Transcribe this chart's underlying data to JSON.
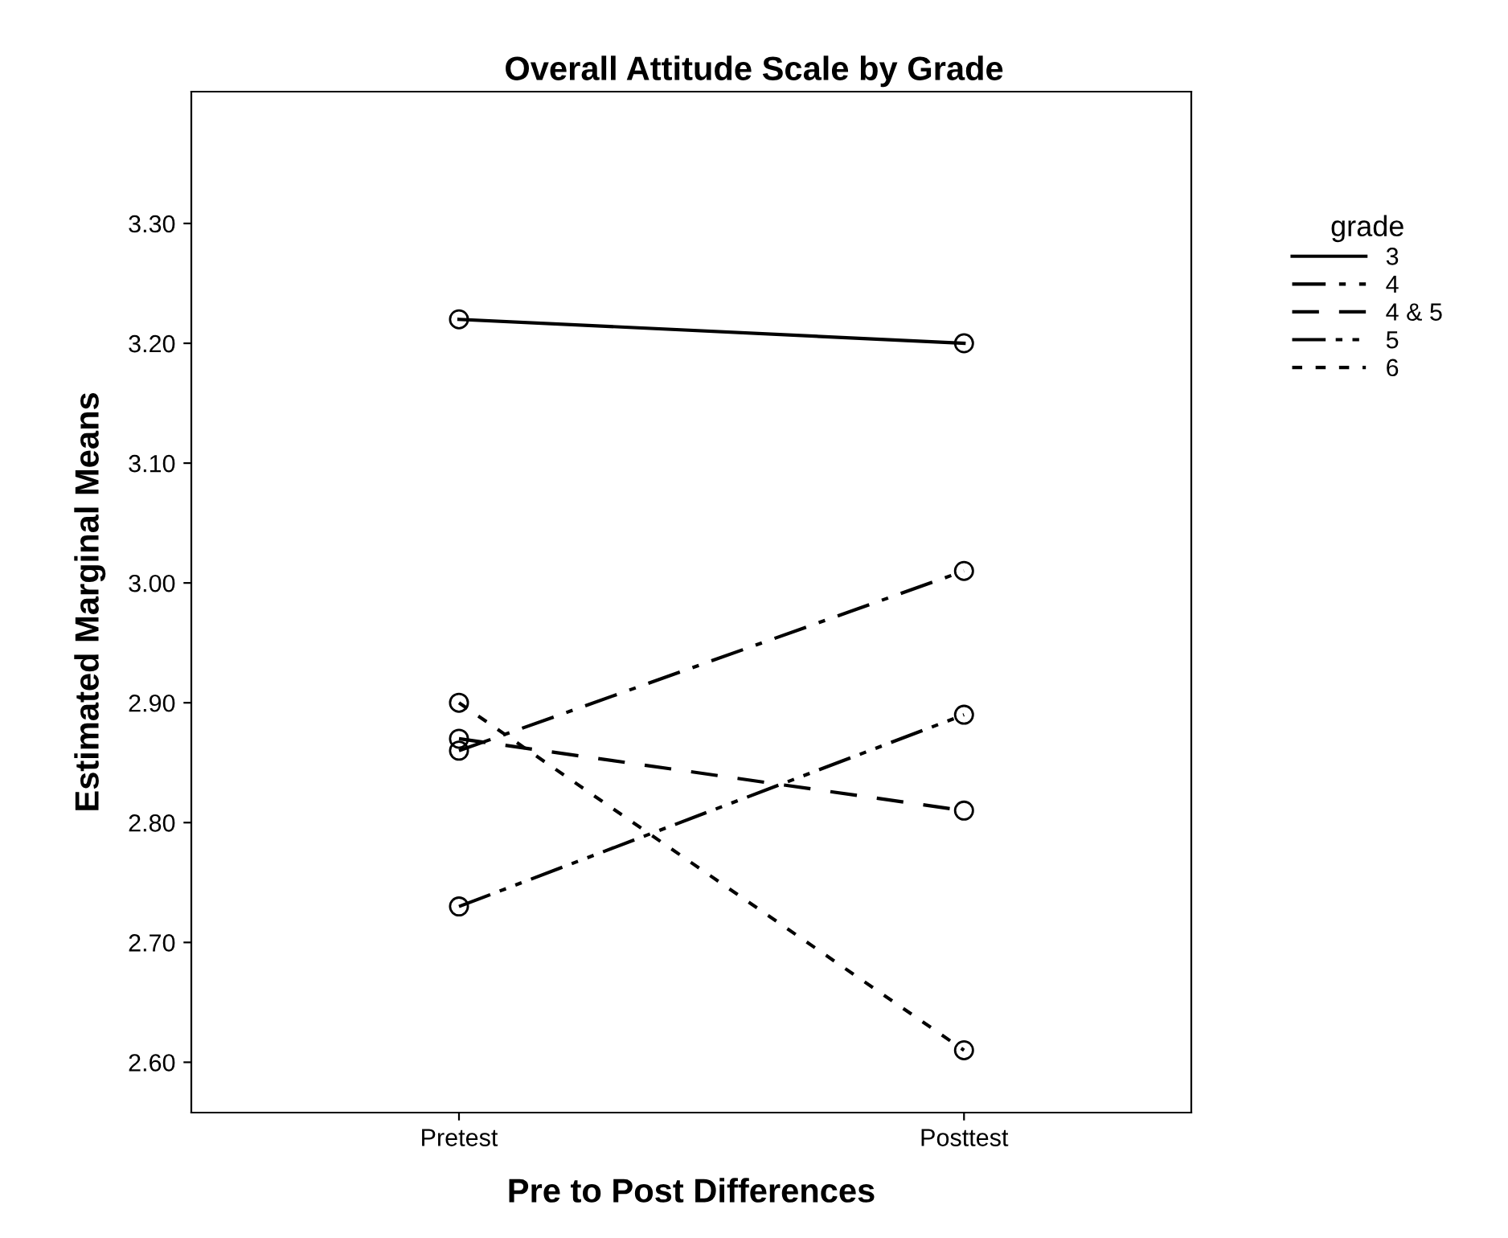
{
  "chart_data": {
    "type": "line",
    "title": "Overall Attitude Scale by Grade",
    "xlabel": "Pre to Post Differences",
    "ylabel": "Estimated Marginal Means",
    "legend_title": "grade",
    "categories": [
      "Pretest",
      "Posttest"
    ],
    "series": [
      {
        "name": "3",
        "color": "#000000",
        "line_style": "solid",
        "values": [
          3.22,
          3.2
        ]
      },
      {
        "name": "4",
        "color": "#000000",
        "line_style": "dashdot",
        "values": [
          2.86,
          3.01
        ]
      },
      {
        "name": "4 & 5",
        "color": "#000000",
        "line_style": "dashed",
        "values": [
          2.87,
          2.81
        ]
      },
      {
        "name": "5",
        "color": "#000000",
        "line_style": "dashdotdot",
        "values": [
          2.73,
          2.89
        ]
      },
      {
        "name": "6",
        "color": "#000000",
        "line_style": "dotted",
        "values": [
          2.9,
          2.61
        ]
      }
    ],
    "ylim": [
      2.558,
      3.41
    ],
    "yticks": [
      {
        "value": 2.6,
        "label": "2.60"
      },
      {
        "value": 2.7,
        "label": "2.70"
      },
      {
        "value": 2.8,
        "label": "2.80"
      },
      {
        "value": 2.9,
        "label": "2.90"
      },
      {
        "value": 3.0,
        "label": "3.00"
      },
      {
        "value": 3.1,
        "label": "3.10"
      },
      {
        "value": 3.2,
        "label": "3.20"
      },
      {
        "value": 3.3,
        "label": "3.30"
      }
    ],
    "marker": "circle",
    "grid": false,
    "legend": "top right"
  }
}
